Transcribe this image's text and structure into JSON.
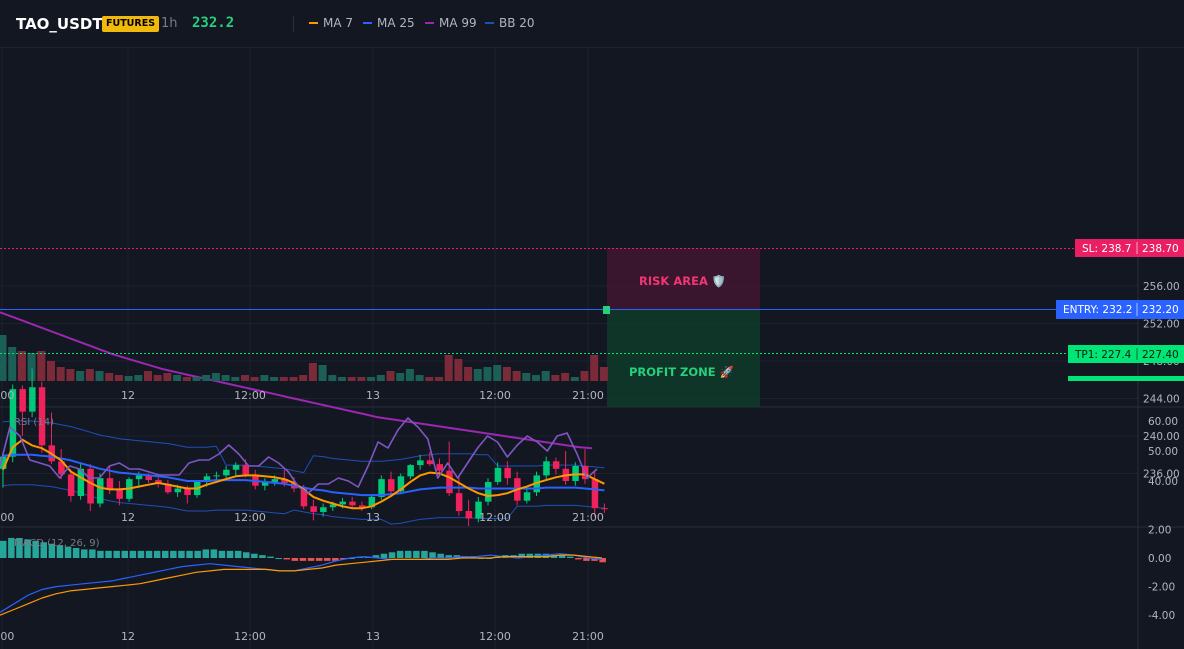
{
  "header": {
    "symbol": "TAO_USDT",
    "badge": "FUTURES",
    "timeframe": "1h",
    "price": "232.2",
    "legend": [
      {
        "label": "MA 7",
        "color": "#ff9800"
      },
      {
        "label": "MA 25",
        "color": "#2962ff"
      },
      {
        "label": "MA 99",
        "color": "#9c27b0"
      },
      {
        "label": "BB 20",
        "color": "#1e4fb8"
      }
    ]
  },
  "main_chart": {
    "price_ticks": [
      "256.00",
      "252.00",
      "248.00",
      "244.00",
      "240.00",
      "236.00"
    ],
    "sl_label": "SL: 238.7",
    "sl_price": "238.70",
    "entry_label": "ENTRY: 232.2",
    "entry_price": "232.20",
    "tp_label": "TP1: 227.4",
    "tp_price": "227.40",
    "risk_zone_label": "RISK AREA 🛡️",
    "profit_zone_label": "PROFIT ZONE 🚀",
    "time_labels": [
      "2:00",
      "12",
      "12:00",
      "13",
      "12:00",
      "21:00"
    ]
  },
  "rsi_panel": {
    "title": "RSI (14)",
    "ticks": [
      "60.00",
      "50.00",
      "40.00"
    ],
    "time_labels": [
      "2:00",
      "12",
      "12:00",
      "13",
      "12:00",
      "21:00"
    ]
  },
  "macd_panel": {
    "title": "MACD (12, 26, 9)",
    "ticks": [
      "2.00",
      "0.00",
      "-2.00",
      "-4.00"
    ],
    "time_labels": [
      "2:00",
      "12",
      "12:00",
      "13",
      "12:00",
      "21:00"
    ]
  },
  "colors": {
    "bull": "#089981",
    "bear": "#f23645",
    "ma7": "#ff9800",
    "ma25": "#2962ff",
    "ma99": "#9c27b0",
    "bb": "#1e4fb8",
    "rsi": "#7e57c2",
    "sl": "#e91e63",
    "entry": "#2962ff",
    "tp": "#00e676"
  },
  "chart_data": [
    {
      "type": "candlestick",
      "title": "TAO_USDT 1h",
      "ylim": [
        227,
        258
      ],
      "candles": [
        {
          "o": 236.5,
          "h": 238.0,
          "l": 234.5,
          "c": 237.8
        },
        {
          "o": 237.8,
          "h": 245.5,
          "l": 237.2,
          "c": 245.0
        },
        {
          "o": 245.0,
          "h": 245.4,
          "l": 240.0,
          "c": 242.6
        },
        {
          "o": 242.6,
          "h": 247.2,
          "l": 242.0,
          "c": 245.2
        },
        {
          "o": 245.2,
          "h": 245.8,
          "l": 238.2,
          "c": 239.0
        },
        {
          "o": 239.0,
          "h": 242.5,
          "l": 237.0,
          "c": 237.3
        },
        {
          "o": 237.3,
          "h": 238.6,
          "l": 235.4,
          "c": 235.9
        },
        {
          "o": 235.9,
          "h": 236.4,
          "l": 233.0,
          "c": 233.6
        },
        {
          "o": 233.6,
          "h": 237.2,
          "l": 233.2,
          "c": 236.5
        },
        {
          "o": 236.5,
          "h": 237.0,
          "l": 232.0,
          "c": 232.8
        },
        {
          "o": 232.8,
          "h": 236.0,
          "l": 232.4,
          "c": 235.5
        },
        {
          "o": 235.5,
          "h": 236.8,
          "l": 233.8,
          "c": 234.3
        },
        {
          "o": 234.3,
          "h": 235.2,
          "l": 232.6,
          "c": 233.3
        },
        {
          "o": 233.3,
          "h": 235.6,
          "l": 233.0,
          "c": 235.4
        },
        {
          "o": 235.4,
          "h": 236.2,
          "l": 234.6,
          "c": 235.8
        },
        {
          "o": 235.8,
          "h": 236.0,
          "l": 235.0,
          "c": 235.3
        },
        {
          "o": 235.3,
          "h": 235.6,
          "l": 234.5,
          "c": 234.9
        },
        {
          "o": 234.9,
          "h": 235.3,
          "l": 233.8,
          "c": 234.0
        },
        {
          "o": 234.0,
          "h": 234.8,
          "l": 233.5,
          "c": 234.4
        },
        {
          "o": 234.4,
          "h": 234.7,
          "l": 232.8,
          "c": 233.7
        },
        {
          "o": 233.7,
          "h": 235.2,
          "l": 233.4,
          "c": 235.1
        },
        {
          "o": 235.1,
          "h": 236.0,
          "l": 234.6,
          "c": 235.7
        },
        {
          "o": 235.7,
          "h": 236.2,
          "l": 235.3,
          "c": 235.8
        },
        {
          "o": 235.8,
          "h": 236.8,
          "l": 235.5,
          "c": 236.4
        },
        {
          "o": 236.4,
          "h": 237.2,
          "l": 235.8,
          "c": 236.9
        },
        {
          "o": 236.9,
          "h": 237.5,
          "l": 235.6,
          "c": 235.9
        },
        {
          "o": 235.9,
          "h": 236.4,
          "l": 234.3,
          "c": 234.7
        },
        {
          "o": 234.7,
          "h": 235.5,
          "l": 234.2,
          "c": 235.1
        },
        {
          "o": 235.1,
          "h": 235.8,
          "l": 234.7,
          "c": 235.4
        },
        {
          "o": 235.4,
          "h": 236.4,
          "l": 234.6,
          "c": 235.0
        },
        {
          "o": 235.0,
          "h": 235.6,
          "l": 234.0,
          "c": 234.4
        },
        {
          "o": 234.4,
          "h": 234.8,
          "l": 232.2,
          "c": 232.5
        },
        {
          "o": 232.5,
          "h": 233.2,
          "l": 231.0,
          "c": 231.9
        },
        {
          "o": 231.9,
          "h": 232.8,
          "l": 231.4,
          "c": 232.4
        },
        {
          "o": 232.4,
          "h": 233.0,
          "l": 232.0,
          "c": 232.7
        },
        {
          "o": 232.7,
          "h": 233.4,
          "l": 232.3,
          "c": 233.0
        },
        {
          "o": 233.0,
          "h": 233.5,
          "l": 232.4,
          "c": 232.6
        },
        {
          "o": 232.6,
          "h": 233.0,
          "l": 232.0,
          "c": 232.4
        },
        {
          "o": 232.4,
          "h": 233.8,
          "l": 232.2,
          "c": 233.5
        },
        {
          "o": 233.5,
          "h": 235.8,
          "l": 233.2,
          "c": 235.4
        },
        {
          "o": 235.4,
          "h": 236.2,
          "l": 233.6,
          "c": 234.1
        },
        {
          "o": 234.1,
          "h": 236.0,
          "l": 233.8,
          "c": 235.7
        },
        {
          "o": 235.7,
          "h": 237.0,
          "l": 235.4,
          "c": 236.9
        },
        {
          "o": 236.9,
          "h": 238.0,
          "l": 236.4,
          "c": 237.4
        },
        {
          "o": 237.4,
          "h": 238.3,
          "l": 236.8,
          "c": 237.0
        },
        {
          "o": 237.0,
          "h": 237.6,
          "l": 236.0,
          "c": 236.3
        },
        {
          "o": 236.3,
          "h": 239.4,
          "l": 233.6,
          "c": 233.9
        },
        {
          "o": 233.9,
          "h": 235.6,
          "l": 231.5,
          "c": 232.0
        },
        {
          "o": 232.0,
          "h": 233.2,
          "l": 230.4,
          "c": 231.2
        },
        {
          "o": 231.2,
          "h": 233.5,
          "l": 230.8,
          "c": 233.0
        },
        {
          "o": 233.0,
          "h": 235.5,
          "l": 232.6,
          "c": 235.1
        },
        {
          "o": 235.1,
          "h": 237.2,
          "l": 234.8,
          "c": 236.6
        },
        {
          "o": 236.6,
          "h": 237.3,
          "l": 234.8,
          "c": 235.5
        },
        {
          "o": 235.5,
          "h": 236.2,
          "l": 232.6,
          "c": 233.1
        },
        {
          "o": 233.1,
          "h": 234.3,
          "l": 232.8,
          "c": 234.0
        },
        {
          "o": 234.0,
          "h": 236.2,
          "l": 233.6,
          "c": 235.8
        },
        {
          "o": 235.8,
          "h": 237.8,
          "l": 235.4,
          "c": 237.3
        },
        {
          "o": 237.3,
          "h": 237.7,
          "l": 235.9,
          "c": 236.5
        },
        {
          "o": 236.5,
          "h": 238.4,
          "l": 234.8,
          "c": 235.2
        },
        {
          "o": 235.2,
          "h": 237.2,
          "l": 234.7,
          "c": 236.8
        },
        {
          "o": 236.8,
          "h": 238.6,
          "l": 234.9,
          "c": 235.4
        },
        {
          "o": 235.4,
          "h": 236.2,
          "l": 231.4,
          "c": 232.3
        },
        {
          "o": 232.3,
          "h": 232.8,
          "l": 231.8,
          "c": 232.2
        }
      ],
      "ma7": [
        236.4,
        238.8,
        239.6,
        239.0,
        238.7,
        238.1,
        237.4,
        236.2,
        235.6,
        235.0,
        234.5,
        234.3,
        234.3,
        234.4,
        234.6,
        234.8,
        235.0,
        234.8,
        234.6,
        234.4,
        234.4,
        234.8,
        235.1,
        235.4,
        235.7,
        235.8,
        235.8,
        235.7,
        235.6,
        235.4,
        235.0,
        234.3,
        233.5,
        233.1,
        232.8,
        232.5,
        232.3,
        232.3,
        232.5,
        233.0,
        233.6,
        234.3,
        235.1,
        235.8,
        236.1,
        236.0,
        235.6,
        235.0,
        234.4,
        233.9,
        233.6,
        233.7,
        233.9,
        234.3,
        234.6,
        235.0,
        235.3,
        235.6,
        235.8,
        235.9,
        235.9,
        235.4,
        234.9
      ],
      "ma25": [
        237.9,
        238.0,
        238.0,
        238.0,
        237.9,
        237.8,
        237.6,
        237.4,
        237.1,
        236.8,
        236.5,
        236.3,
        236.1,
        236.0,
        235.9,
        235.8,
        235.7,
        235.6,
        235.4,
        235.2,
        235.2,
        235.2,
        235.3,
        235.3,
        235.3,
        235.3,
        235.2,
        235.1,
        235.0,
        234.9,
        234.7,
        234.5,
        234.3,
        234.2,
        234.0,
        233.9,
        233.8,
        233.7,
        233.7,
        233.7,
        233.8,
        233.9,
        234.1,
        234.3,
        234.4,
        234.5,
        234.5,
        234.5,
        234.5,
        234.4,
        234.4,
        234.4,
        234.4,
        234.4,
        234.4,
        234.4,
        234.5,
        234.5,
        234.5,
        234.5,
        234.4,
        234.3,
        234.2
      ],
      "ma99": [
        253.2,
        252.7,
        252.2,
        251.7,
        251.2,
        250.7,
        250.2,
        249.7,
        249.2,
        248.7,
        248.3,
        247.9,
        247.5,
        247.1,
        246.8,
        246.5,
        246.2,
        245.9,
        245.6,
        245.3,
        245.0,
        244.7,
        244.4,
        244.1,
        243.8,
        243.5,
        243.2,
        242.9,
        242.6,
        242.3,
        242.0,
        241.8,
        241.6,
        241.4,
        241.2,
        241.0,
        240.8,
        240.6,
        240.4,
        240.2,
        240.0,
        239.8,
        239.6,
        239.4,
        239.2,
        239.0,
        238.8,
        238.7
      ]
    },
    {
      "type": "line",
      "title": "RSI (14)",
      "ylim": [
        35,
        63
      ],
      "values": [
        45,
        58,
        55,
        47,
        46,
        45,
        41,
        45,
        44,
        41,
        41,
        45,
        46,
        44,
        44,
        43,
        42,
        42,
        42,
        46,
        47,
        47,
        49,
        52,
        49,
        45,
        45,
        48,
        46,
        43,
        38,
        36,
        39,
        39,
        41,
        40,
        38,
        45,
        53,
        51,
        57,
        61,
        58,
        54,
        41,
        46,
        41,
        46,
        51,
        55,
        53,
        48,
        52,
        55,
        53,
        50,
        55,
        56,
        49,
        41,
        44
      ]
    },
    {
      "type": "bar",
      "title": "MACD (12, 26, 9)",
      "ylim": [
        -4.4,
        2.4
      ],
      "histogram": [
        1.2,
        1.4,
        1.4,
        1.3,
        1.2,
        1.1,
        1.0,
        0.9,
        0.8,
        0.7,
        0.6,
        0.6,
        0.5,
        0.5,
        0.5,
        0.5,
        0.5,
        0.5,
        0.5,
        0.5,
        0.5,
        0.5,
        0.5,
        0.5,
        0.5,
        0.6,
        0.6,
        0.5,
        0.5,
        0.5,
        0.4,
        0.3,
        0.2,
        0.1,
        0.0,
        -0.1,
        -0.2,
        -0.2,
        -0.2,
        -0.2,
        -0.2,
        -0.2,
        -0.1,
        0.0,
        0.1,
        0.1,
        0.2,
        0.3,
        0.4,
        0.5,
        0.5,
        0.5,
        0.5,
        0.4,
        0.3,
        0.2,
        0.2,
        0.1,
        0.1,
        0.0,
        0.0,
        0.1,
        0.2,
        0.2,
        0.3,
        0.3,
        0.3,
        0.3,
        0.2,
        0.2,
        0.1,
        -0.1,
        -0.2,
        -0.2,
        -0.3
      ],
      "macd": [
        -3.8,
        -3.2,
        -2.6,
        -2.2,
        -2.0,
        -1.9,
        -1.8,
        -1.7,
        -1.6,
        -1.4,
        -1.2,
        -1.0,
        -0.8,
        -0.6,
        -0.5,
        -0.4,
        -0.5,
        -0.6,
        -0.7,
        -0.8,
        -0.9,
        -0.9,
        -0.7,
        -0.5,
        -0.2,
        0.0,
        0.1,
        0.0,
        -0.1,
        -0.1,
        -0.1,
        0.0,
        0.0,
        0.1,
        0.1,
        0.2,
        0.1,
        0.0,
        0.1,
        0.2,
        0.3,
        0.2,
        0.0,
        -0.1
      ],
      "signal": [
        -4.0,
        -3.6,
        -3.2,
        -2.8,
        -2.5,
        -2.3,
        -2.2,
        -2.1,
        -2.0,
        -1.9,
        -1.8,
        -1.6,
        -1.4,
        -1.2,
        -1.0,
        -0.9,
        -0.8,
        -0.8,
        -0.8,
        -0.8,
        -0.9,
        -0.9,
        -0.8,
        -0.7,
        -0.5,
        -0.4,
        -0.3,
        -0.2,
        -0.1,
        -0.1,
        -0.1,
        -0.1,
        -0.1,
        0.0,
        0.0,
        0.0,
        0.1,
        0.1,
        0.1,
        0.1,
        0.2,
        0.2,
        0.1,
        0.0
      ]
    }
  ]
}
